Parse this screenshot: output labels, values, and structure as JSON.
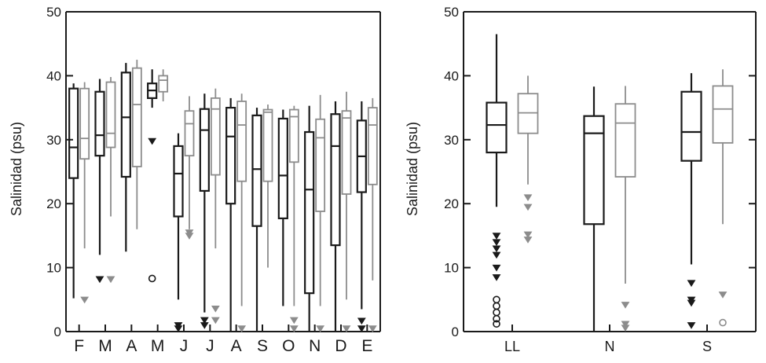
{
  "colors": {
    "black_series": "#1a1a1a",
    "gray_series": "#8c8c8c",
    "axis": "#1a1a1a"
  },
  "chart_data": [
    {
      "type": "box",
      "ylabel": "Salinidad (psu)",
      "ylim": [
        0,
        50
      ],
      "yticks": [
        "0",
        "10",
        "20",
        "30",
        "40",
        "50"
      ],
      "categories": [
        "F",
        "M",
        "A",
        "M",
        "J",
        "J",
        "A",
        "S",
        "O",
        "N",
        "D",
        "E"
      ],
      "series": [
        {
          "color": "#1a1a1a",
          "boxes": [
            {
              "whislo": 5.2,
              "q1": 24,
              "med": 28.8,
              "q3": 38,
              "whishi": 38.8
            },
            {
              "whislo": 12,
              "q1": 27.5,
              "med": 30.7,
              "q3": 37.5,
              "whishi": 39.5,
              "fliers": [
                {
                  "y": 8.2,
                  "marker": "tri"
                }
              ]
            },
            {
              "whislo": 12.5,
              "q1": 24.2,
              "med": 33.5,
              "q3": 40.5,
              "whishi": 42
            },
            {
              "whislo": 35,
              "q1": 36.5,
              "med": 37.7,
              "q3": 38.8,
              "whishi": 41,
              "fliers": [
                {
                  "y": 29.8,
                  "marker": "tri"
                },
                {
                  "y": 8.3,
                  "marker": "circle"
                }
              ]
            },
            {
              "whislo": 5,
              "q1": 18,
              "med": 24.7,
              "q3": 29,
              "whishi": 31,
              "fliers": [
                {
                  "y": 1,
                  "marker": "tri"
                },
                {
                  "y": 0.5,
                  "marker": "tri"
                }
              ]
            },
            {
              "whislo": 3,
              "q1": 22,
              "med": 31.5,
              "q3": 34.8,
              "whishi": 37.2,
              "fliers": [
                {
                  "y": 1.8,
                  "marker": "tri"
                },
                {
                  "y": 1,
                  "marker": "tri"
                }
              ]
            },
            {
              "whislo": 0,
              "q1": 20,
              "med": 30.5,
              "q3": 35,
              "whishi": 36.5
            },
            {
              "whislo": 0,
              "q1": 16.5,
              "med": 25.4,
              "q3": 33.8,
              "whishi": 35
            },
            {
              "whislo": 4,
              "q1": 17.7,
              "med": 24.4,
              "q3": 33.3,
              "whishi": 34.7
            },
            {
              "whislo": 0,
              "q1": 6,
              "med": 22.2,
              "q3": 31.2,
              "whishi": 35.3
            },
            {
              "whislo": 0,
              "q1": 13.5,
              "med": 29,
              "q3": 34,
              "whishi": 36
            },
            {
              "whislo": 3.5,
              "q1": 21.8,
              "med": 27.4,
              "q3": 33,
              "whishi": 36,
              "fliers": [
                {
                  "y": 1.7,
                  "marker": "tri"
                },
                {
                  "y": 0.5,
                  "marker": "tri"
                }
              ]
            }
          ]
        },
        {
          "color": "#8c8c8c",
          "boxes": [
            {
              "whislo": 13,
              "q1": 27,
              "med": 30.2,
              "q3": 38,
              "whishi": 39,
              "fliers": [
                {
                  "y": 5,
                  "marker": "tri"
                }
              ]
            },
            {
              "whislo": 18,
              "q1": 28.8,
              "med": 31,
              "q3": 39,
              "whishi": 39.8,
              "fliers": [
                {
                  "y": 8.2,
                  "marker": "tri"
                }
              ]
            },
            {
              "whislo": 16,
              "q1": 25.8,
              "med": 35.5,
              "q3": 41.2,
              "whishi": 42.5
            },
            {
              "whislo": 36,
              "q1": 37.5,
              "med": 39.3,
              "q3": 40,
              "whishi": 41
            },
            {
              "whislo": 16,
              "q1": 27.5,
              "med": 32.5,
              "q3": 34.5,
              "whishi": 36.8,
              "fliers": [
                {
                  "y": 15.5,
                  "marker": "tri"
                },
                {
                  "y": 15,
                  "marker": "tri"
                }
              ]
            },
            {
              "whislo": 13,
              "q1": 24.5,
              "med": 34.8,
              "q3": 36.5,
              "whishi": 38,
              "fliers": [
                {
                  "y": 3.6,
                  "marker": "tri"
                },
                {
                  "y": 1.8,
                  "marker": "tri"
                }
              ]
            },
            {
              "whislo": 4,
              "q1": 23.5,
              "med": 32.3,
              "q3": 36,
              "whishi": 37.2,
              "fliers": [
                {
                  "y": 0.5,
                  "marker": "tri"
                }
              ]
            },
            {
              "whislo": 10,
              "q1": 23.5,
              "med": 34.3,
              "q3": 34.7,
              "whishi": 35.5
            },
            {
              "whislo": 4,
              "q1": 26.5,
              "med": 33.6,
              "q3": 34.7,
              "whishi": 35.3,
              "fliers": [
                {
                  "y": 1.8,
                  "marker": "tri"
                },
                {
                  "y": 0.5,
                  "marker": "tri"
                }
              ]
            },
            {
              "whislo": 4,
              "q1": 18.8,
              "med": 30.3,
              "q3": 33.2,
              "whishi": 37,
              "fliers": [
                {
                  "y": 0.5,
                  "marker": "tri"
                }
              ]
            },
            {
              "whislo": 5,
              "q1": 21.5,
              "med": 33.4,
              "q3": 34.5,
              "whishi": 37.5,
              "fliers": [
                {
                  "y": 0.5,
                  "marker": "tri"
                }
              ]
            },
            {
              "whislo": 8,
              "q1": 23,
              "med": 32.3,
              "q3": 35,
              "whishi": 36.5,
              "fliers": [
                {
                  "y": 0.5,
                  "marker": "tri"
                }
              ]
            }
          ]
        }
      ]
    },
    {
      "type": "box",
      "ylabel": "Salinidad (psu)",
      "ylim": [
        0,
        50
      ],
      "yticks": [
        "0",
        "10",
        "20",
        "30",
        "40",
        "50"
      ],
      "categories": [
        "LL",
        "N",
        "S"
      ],
      "series": [
        {
          "color": "#1a1a1a",
          "boxes": [
            {
              "whislo": 19.5,
              "q1": 28,
              "med": 32.3,
              "q3": 35.8,
              "whishi": 46.5,
              "fliers": [
                {
                  "y": 15,
                  "marker": "tri"
                },
                {
                  "y": 14,
                  "marker": "tri"
                },
                {
                  "y": 13,
                  "marker": "tri"
                },
                {
                  "y": 12,
                  "marker": "tri"
                },
                {
                  "y": 10,
                  "marker": "tri"
                },
                {
                  "y": 8.5,
                  "marker": "tri"
                },
                {
                  "y": 5,
                  "marker": "circle"
                },
                {
                  "y": 4,
                  "marker": "circle"
                },
                {
                  "y": 3,
                  "marker": "circle"
                },
                {
                  "y": 2,
                  "marker": "circle"
                },
                {
                  "y": 1.2,
                  "marker": "circle"
                }
              ]
            },
            {
              "whislo": 0,
              "q1": 16.8,
              "med": 31,
              "q3": 33.7,
              "whishi": 38.3
            },
            {
              "whislo": 10.5,
              "q1": 26.7,
              "med": 31.2,
              "q3": 37.5,
              "whishi": 40.4,
              "fliers": [
                {
                  "y": 7.6,
                  "marker": "tri"
                },
                {
                  "y": 5,
                  "marker": "tri"
                },
                {
                  "y": 4.5,
                  "marker": "tri"
                },
                {
                  "y": 1,
                  "marker": "tri"
                }
              ]
            }
          ]
        },
        {
          "color": "#8c8c8c",
          "boxes": [
            {
              "whislo": 23,
              "q1": 31,
              "med": 34.2,
              "q3": 37.2,
              "whishi": 40,
              "fliers": [
                {
                  "y": 21,
                  "marker": "tri"
                },
                {
                  "y": 19.5,
                  "marker": "tri"
                },
                {
                  "y": 15.2,
                  "marker": "tri"
                },
                {
                  "y": 14.4,
                  "marker": "tri"
                }
              ]
            },
            {
              "whislo": 7.5,
              "q1": 24.2,
              "med": 32.6,
              "q3": 35.6,
              "whishi": 38.4,
              "fliers": [
                {
                  "y": 4.2,
                  "marker": "tri"
                },
                {
                  "y": 1.2,
                  "marker": "tri"
                },
                {
                  "y": 0.6,
                  "marker": "tri"
                }
              ]
            },
            {
              "whislo": 16.8,
              "q1": 29.5,
              "med": 34.8,
              "q3": 38.4,
              "whishi": 41,
              "fliers": [
                {
                  "y": 5.8,
                  "marker": "tri"
                },
                {
                  "y": 1.4,
                  "marker": "circle"
                }
              ]
            }
          ]
        }
      ]
    }
  ]
}
